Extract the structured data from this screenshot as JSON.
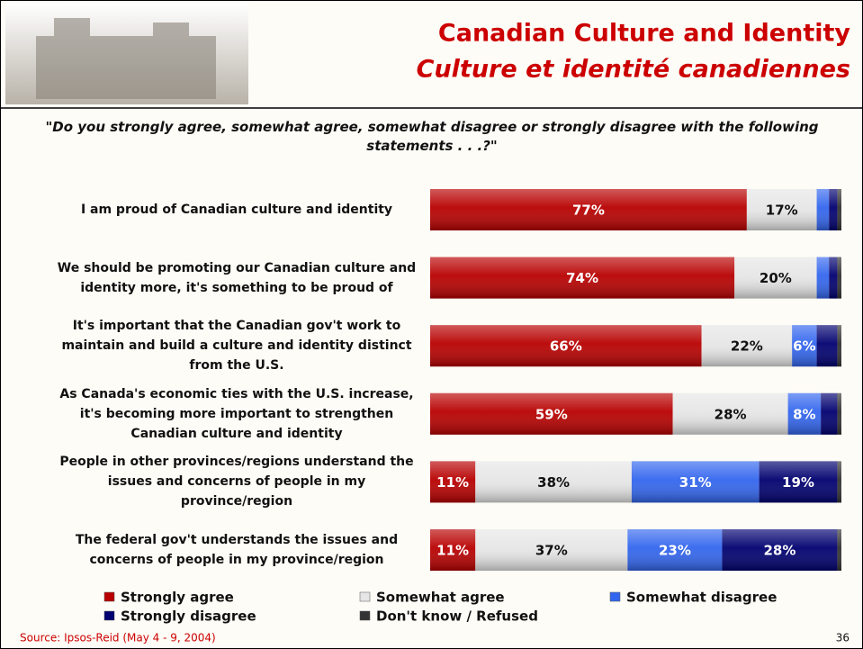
{
  "chart_data": {
    "type": "stacked-bar-horizontal",
    "title": "Canadian Culture and Identity",
    "subtitle": "Culture et identité canadiennes",
    "question": "\"Do you strongly agree, somewhat agree, somewhat disagree or strongly disagree with the following statements . . .?\"",
    "source": "Source: Ipsos-Reid (May 4 - 9, 2004)",
    "page_number": 36,
    "categories": [
      "I am proud of Canadian culture and identity",
      "We should be promoting our Canadian culture and identity more, it's something to be proud of",
      "It's important that the Canadian gov't work to maintain and build a culture and identity distinct from the U.S.",
      "As Canada's economic ties with the U.S. increase, it's becoming more important to strengthen Canadian culture and identity",
      "People in other provinces/regions understand the issues and concerns of people in my province/region",
      "The federal gov't understands the issues and concerns of people in my province/region"
    ],
    "xlim": [
      0,
      100
    ],
    "series": [
      {
        "name": "Strongly agree",
        "color": "#b80000",
        "values": [
          77,
          74,
          66,
          59,
          11,
          11
        ],
        "value_labels": [
          "77%",
          "74%",
          "66%",
          "59%",
          "11%",
          "11%"
        ]
      },
      {
        "name": "Somewhat agree",
        "color": "#e6e6e6",
        "values": [
          17,
          20,
          22,
          28,
          38,
          37
        ],
        "value_labels": [
          "17%",
          "20%",
          "22%",
          "28%",
          "38%",
          "37%"
        ]
      },
      {
        "name": "Somewhat disagree",
        "color": "#3366ee",
        "values": [
          3,
          3,
          6,
          8,
          31,
          23
        ],
        "value_labels": [
          null,
          null,
          "6%",
          "8%",
          "31%",
          "23%"
        ]
      },
      {
        "name": "Strongly disagree",
        "color": "#000070",
        "values": [
          2,
          2,
          5,
          4,
          19,
          28
        ],
        "value_labels": [
          null,
          null,
          null,
          null,
          "19%",
          "28%"
        ]
      },
      {
        "name": "Don't know / Refused",
        "color": "#333333",
        "values": [
          1,
          1,
          1,
          1,
          1,
          1
        ],
        "value_labels": [
          null,
          null,
          null,
          null,
          null,
          null
        ]
      }
    ]
  }
}
